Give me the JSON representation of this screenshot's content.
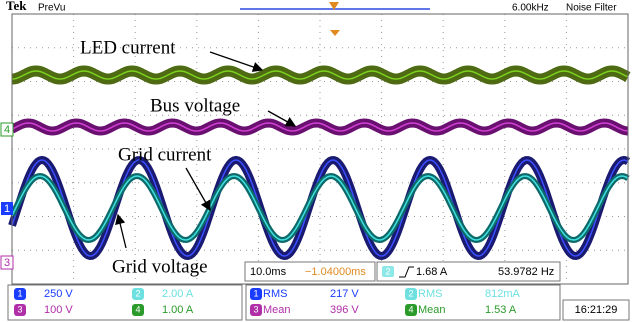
{
  "header": {
    "brand": "Tek",
    "mode": "PreVu",
    "frequency": "6.00kHz",
    "filter": "Noise Filter"
  },
  "annotations": [
    "LED current",
    "Bus voltage",
    "Grid current",
    "Grid voltage"
  ],
  "channel_markers": [
    "4",
    "1",
    "3"
  ],
  "timebase": {
    "scale": "10.0ms",
    "delay": "−1.04000ms",
    "trigger_channel": "2",
    "trigger_level": "1.68 A",
    "frequency": "53.9782 Hz"
  },
  "channels": [
    {
      "id": "1",
      "scale": "250 V"
    },
    {
      "id": "2",
      "scale": "2.00 A"
    },
    {
      "id": "3",
      "scale": "100 V"
    },
    {
      "id": "4",
      "scale": "1.00 A"
    }
  ],
  "measurements": [
    {
      "channel": "1",
      "type": "RMS",
      "value": "217 V"
    },
    {
      "channel": "2",
      "type": "RMS",
      "value": "812mA"
    },
    {
      "channel": "3",
      "type": "Mean",
      "value": "396 V"
    },
    {
      "channel": "4",
      "type": "Mean",
      "value": "1.53 A"
    }
  ],
  "clock": "16:21:29"
}
